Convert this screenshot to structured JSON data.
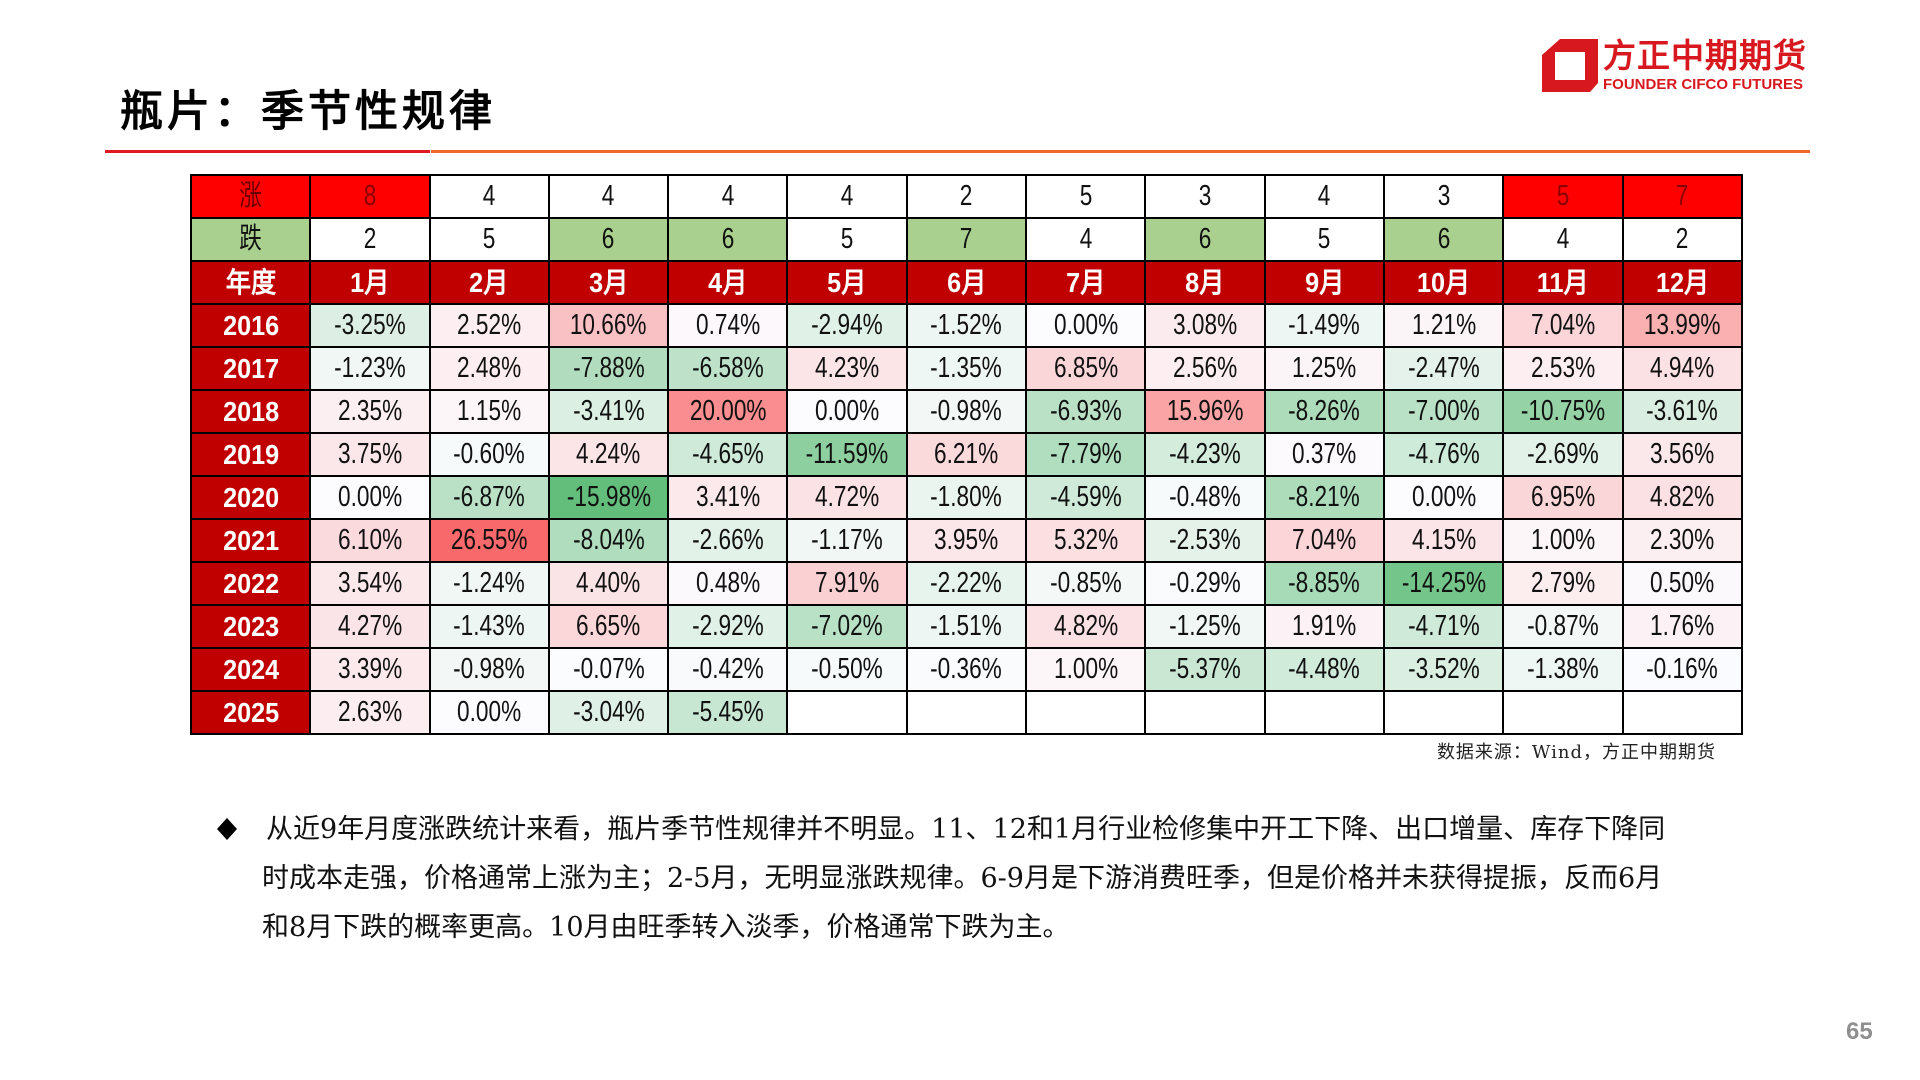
{
  "header": {
    "title": "瓶片：季节性规律"
  },
  "logo": {
    "icon": "founder-cifco-logo-icon",
    "name_cn": "方正中期期货",
    "name_en": "FOUNDER CIFCO FUTURES"
  },
  "colors": {
    "header_bg": "#C00000",
    "rise_bg": "#FF0000",
    "rise_text": "#8B0000",
    "fall_bg": "#A9D08E",
    "brand": "#D7191F",
    "rule_red": "#E01A22",
    "rule_orange": "#F0692A",
    "page_num": "#8F8F8F"
  },
  "color_scale": {
    "min_color": "#63BE7B",
    "mid_color": "#FCFCFF",
    "max_color": "#F8696B"
  },
  "table": {
    "rise_label": "涨",
    "rise_counts": [
      "8",
      "4",
      "4",
      "4",
      "4",
      "2",
      "5",
      "3",
      "4",
      "3",
      "5",
      "7"
    ],
    "rise_highlight": [
      0,
      10,
      11
    ],
    "fall_label": "跌",
    "fall_counts": [
      "2",
      "5",
      "6",
      "6",
      "5",
      "7",
      "4",
      "6",
      "5",
      "6",
      "4",
      "2"
    ],
    "fall_highlight": [
      2,
      3,
      5,
      7,
      9
    ],
    "year_header": "年度",
    "months": [
      "1月",
      "2月",
      "3月",
      "4月",
      "5月",
      "6月",
      "7月",
      "8月",
      "9月",
      "10月",
      "11月",
      "12月"
    ],
    "rows": [
      {
        "year": "2016",
        "values": [
          "-3.25%",
          "2.52%",
          "10.66%",
          "0.74%",
          "-2.94%",
          "-1.52%",
          "0.00%",
          "3.08%",
          "-1.49%",
          "1.21%",
          "7.04%",
          "13.99%"
        ]
      },
      {
        "year": "2017",
        "values": [
          "-1.23%",
          "2.48%",
          "-7.88%",
          "-6.58%",
          "4.23%",
          "-1.35%",
          "6.85%",
          "2.56%",
          "1.25%",
          "-2.47%",
          "2.53%",
          "4.94%"
        ]
      },
      {
        "year": "2018",
        "values": [
          "2.35%",
          "1.15%",
          "-3.41%",
          "20.00%",
          "0.00%",
          "-0.98%",
          "-6.93%",
          "15.96%",
          "-8.26%",
          "-7.00%",
          "-10.75%",
          "-3.61%"
        ]
      },
      {
        "year": "2019",
        "values": [
          "3.75%",
          "-0.60%",
          "4.24%",
          "-4.65%",
          "-11.59%",
          "6.21%",
          "-7.79%",
          "-4.23%",
          "0.37%",
          "-4.76%",
          "-2.69%",
          "3.56%"
        ]
      },
      {
        "year": "2020",
        "values": [
          "0.00%",
          "-6.87%",
          "-15.98%",
          "3.41%",
          "4.72%",
          "-1.80%",
          "-4.59%",
          "-0.48%",
          "-8.21%",
          "0.00%",
          "6.95%",
          "4.82%"
        ]
      },
      {
        "year": "2021",
        "values": [
          "6.10%",
          "26.55%",
          "-8.04%",
          "-2.66%",
          "-1.17%",
          "3.95%",
          "5.32%",
          "-2.53%",
          "7.04%",
          "4.15%",
          "1.00%",
          "2.30%"
        ]
      },
      {
        "year": "2022",
        "values": [
          "3.54%",
          "-1.24%",
          "4.40%",
          "0.48%",
          "7.91%",
          "-2.22%",
          "-0.85%",
          "-0.29%",
          "-8.85%",
          "-14.25%",
          "2.79%",
          "0.50%"
        ]
      },
      {
        "year": "2023",
        "values": [
          "4.27%",
          "-1.43%",
          "6.65%",
          "-2.92%",
          "-7.02%",
          "-1.51%",
          "4.82%",
          "-1.25%",
          "1.91%",
          "-4.71%",
          "-0.87%",
          "1.76%"
        ]
      },
      {
        "year": "2024",
        "values": [
          "3.39%",
          "-0.98%",
          "-0.07%",
          "-0.42%",
          "-0.50%",
          "-0.36%",
          "1.00%",
          "-5.37%",
          "-4.48%",
          "-3.52%",
          "-1.38%",
          "-0.16%"
        ]
      },
      {
        "year": "2025",
        "values": [
          "2.63%",
          "0.00%",
          "-3.04%",
          "-5.45%",
          "",
          "",
          "",
          "",
          "",
          "",
          "",
          ""
        ]
      }
    ]
  },
  "source": "数据来源：Wind，方正中期期货",
  "commentary": {
    "bullet_icon": "diamond",
    "lines": [
      "从近9年月度涨跌统计来看，瓶片季节性规律并不明显。11、12和1月行业检修集中开工下降、出口增量、库存下降同",
      "时成本走强，价格通常上涨为主；2-5月，无明显涨跌规律。6-9月是下游消费旺季，但是价格并未获得提振，反而6月",
      "和8月下跌的概率更高。10月由旺季转入淡季，价格通常下跌为主。"
    ]
  },
  "page_number": "65"
}
